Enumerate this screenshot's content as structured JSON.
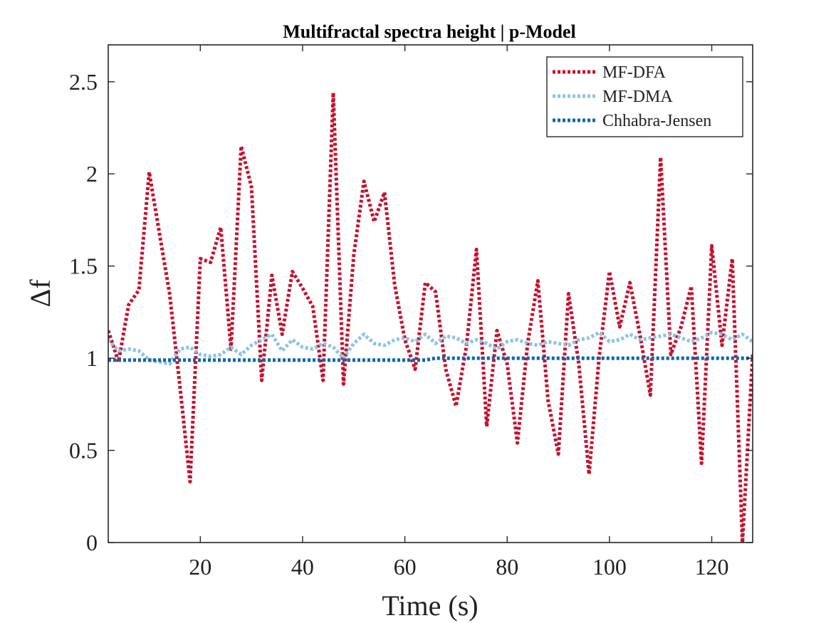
{
  "chart_data": {
    "type": "line",
    "title": "Multifractal spectra height | p-Model",
    "xlabel": "Time (s)",
    "ylabel": "Δf",
    "xlim": [
      2,
      128
    ],
    "ylim": [
      0,
      2.7
    ],
    "xticks": [
      20,
      40,
      60,
      80,
      100,
      120
    ],
    "yticks": [
      0,
      0.5,
      1,
      1.5,
      2,
      2.5
    ],
    "ytick_labels": [
      "0",
      "0.5",
      "1",
      "1.5",
      "2",
      "2.5"
    ],
    "legend_position": "top-right",
    "series": [
      {
        "name": "MF-DFA",
        "color": "#c4122f",
        "x": [
          2,
          4,
          6,
          8,
          10,
          12,
          14,
          16,
          18,
          20,
          22,
          24,
          26,
          28,
          30,
          32,
          34,
          36,
          38,
          40,
          42,
          44,
          46,
          48,
          50,
          52,
          54,
          56,
          58,
          60,
          62,
          64,
          66,
          68,
          70,
          72,
          74,
          76,
          78,
          80,
          82,
          84,
          86,
          88,
          90,
          92,
          94,
          96,
          98,
          100,
          102,
          104,
          106,
          108,
          110,
          112,
          114,
          116,
          118,
          120,
          122,
          124,
          126,
          128
        ],
        "y": [
          1.15,
          0.98,
          1.29,
          1.37,
          2.01,
          1.68,
          1.35,
          0.85,
          0.33,
          1.54,
          1.52,
          1.71,
          1.05,
          2.15,
          1.93,
          0.88,
          1.45,
          1.13,
          1.47,
          1.38,
          1.28,
          0.88,
          2.44,
          0.86,
          1.56,
          1.96,
          1.74,
          1.9,
          1.4,
          1.1,
          0.94,
          1.41,
          1.36,
          0.94,
          0.74,
          1.06,
          1.59,
          0.63,
          1.15,
          0.97,
          0.54,
          1.08,
          1.42,
          0.77,
          0.48,
          1.35,
          0.97,
          0.37,
          1.01,
          1.47,
          1.17,
          1.41,
          1.12,
          0.8,
          2.09,
          1.02,
          1.17,
          1.39,
          0.43,
          1.61,
          1.07,
          1.54,
          0.0,
          1.02
        ]
      },
      {
        "name": "MF-DMA",
        "color": "#8fc3df",
        "x": [
          2,
          4,
          6,
          8,
          10,
          12,
          14,
          16,
          18,
          20,
          22,
          24,
          26,
          28,
          30,
          32,
          34,
          36,
          38,
          40,
          42,
          44,
          46,
          48,
          50,
          52,
          54,
          56,
          58,
          60,
          62,
          64,
          66,
          68,
          70,
          72,
          74,
          76,
          78,
          80,
          82,
          84,
          86,
          88,
          90,
          92,
          94,
          96,
          98,
          100,
          102,
          104,
          106,
          108,
          110,
          112,
          114,
          116,
          118,
          120,
          122,
          124,
          126,
          128
        ],
        "y": [
          1.1,
          1.04,
          1.05,
          1.04,
          0.99,
          0.98,
          0.97,
          1.05,
          1.06,
          1.02,
          1.01,
          1.02,
          1.06,
          1.02,
          1.07,
          1.1,
          1.13,
          1.04,
          1.1,
          1.06,
          1.05,
          1.08,
          1.06,
          1.0,
          1.08,
          1.13,
          1.08,
          1.07,
          1.1,
          1.11,
          1.09,
          1.13,
          1.08,
          1.12,
          1.11,
          1.08,
          1.1,
          1.08,
          1.05,
          1.09,
          1.1,
          1.08,
          1.07,
          1.09,
          1.08,
          1.07,
          1.1,
          1.11,
          1.14,
          1.09,
          1.1,
          1.13,
          1.1,
          1.11,
          1.12,
          1.13,
          1.11,
          1.09,
          1.11,
          1.14,
          1.13,
          1.1,
          1.13,
          1.09
        ]
      },
      {
        "name": "Chhabra-Jensen",
        "color": "#0f67a8",
        "x": [
          2,
          4,
          6,
          8,
          10,
          12,
          14,
          16,
          18,
          20,
          22,
          24,
          26,
          28,
          30,
          32,
          34,
          36,
          38,
          40,
          42,
          44,
          46,
          48,
          50,
          52,
          54,
          56,
          58,
          60,
          62,
          64,
          66,
          68,
          70,
          72,
          74,
          76,
          78,
          80,
          82,
          84,
          86,
          88,
          90,
          92,
          94,
          96,
          98,
          100,
          102,
          104,
          106,
          108,
          110,
          112,
          114,
          116,
          118,
          120,
          122,
          124,
          126,
          128
        ],
        "y": [
          0.99,
          0.99,
          0.99,
          0.99,
          0.99,
          0.99,
          0.99,
          0.99,
          0.99,
          0.99,
          0.99,
          0.99,
          0.99,
          0.99,
          0.99,
          0.99,
          0.99,
          0.99,
          0.99,
          0.99,
          0.99,
          0.99,
          0.99,
          0.99,
          0.99,
          0.99,
          0.99,
          0.99,
          0.99,
          0.99,
          0.99,
          0.99,
          1.0,
          1.0,
          1.0,
          1.0,
          1.0,
          1.0,
          1.0,
          1.0,
          1.0,
          1.0,
          1.0,
          1.0,
          1.0,
          1.0,
          1.0,
          1.0,
          1.0,
          1.0,
          1.0,
          1.0,
          1.0,
          1.0,
          1.0,
          1.0,
          1.0,
          1.0,
          1.0,
          1.0,
          1.0,
          1.0,
          1.0,
          1.0
        ]
      }
    ]
  }
}
